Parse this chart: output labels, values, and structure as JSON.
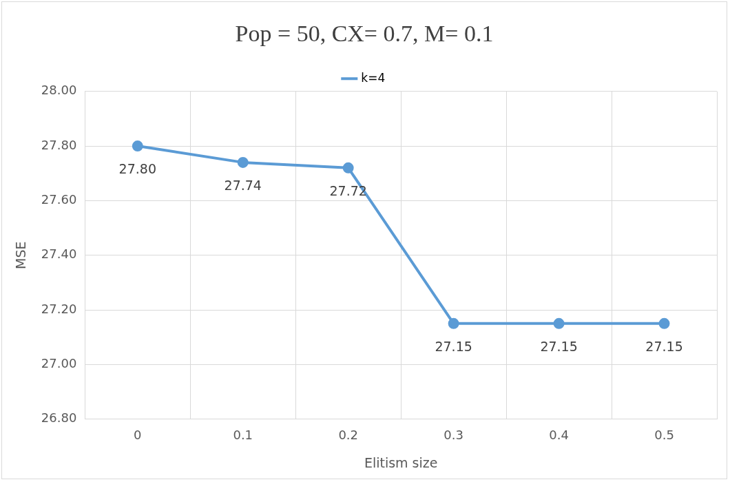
{
  "chart_data": {
    "type": "line",
    "title": "Pop = 50, CX= 0.7, M= 0.1",
    "xlabel": "Elitism size",
    "ylabel": "MSE",
    "categories": [
      "0",
      "0.1",
      "0.2",
      "0.3",
      "0.4",
      "0.5"
    ],
    "series": [
      {
        "name": "k=4",
        "color": "#5b9bd5",
        "values": [
          27.8,
          27.74,
          27.72,
          27.15,
          27.15,
          27.15
        ],
        "value_labels": [
          "27.80",
          "27.74",
          "27.72",
          "27.15",
          "27.15",
          "27.15"
        ]
      }
    ],
    "ylim": [
      26.8,
      28.0
    ],
    "yticks": [
      {
        "value": 26.8,
        "label": "26.80"
      },
      {
        "value": 27.0,
        "label": "27.00"
      },
      {
        "value": 27.2,
        "label": "27.20"
      },
      {
        "value": 27.4,
        "label": "27.40"
      },
      {
        "value": 27.6,
        "label": "27.60"
      },
      {
        "value": 27.8,
        "label": "27.80"
      },
      {
        "value": 28.0,
        "label": "28.00"
      }
    ],
    "grid": true,
    "legend": "top",
    "marker": "circle",
    "line_style": "solid"
  }
}
